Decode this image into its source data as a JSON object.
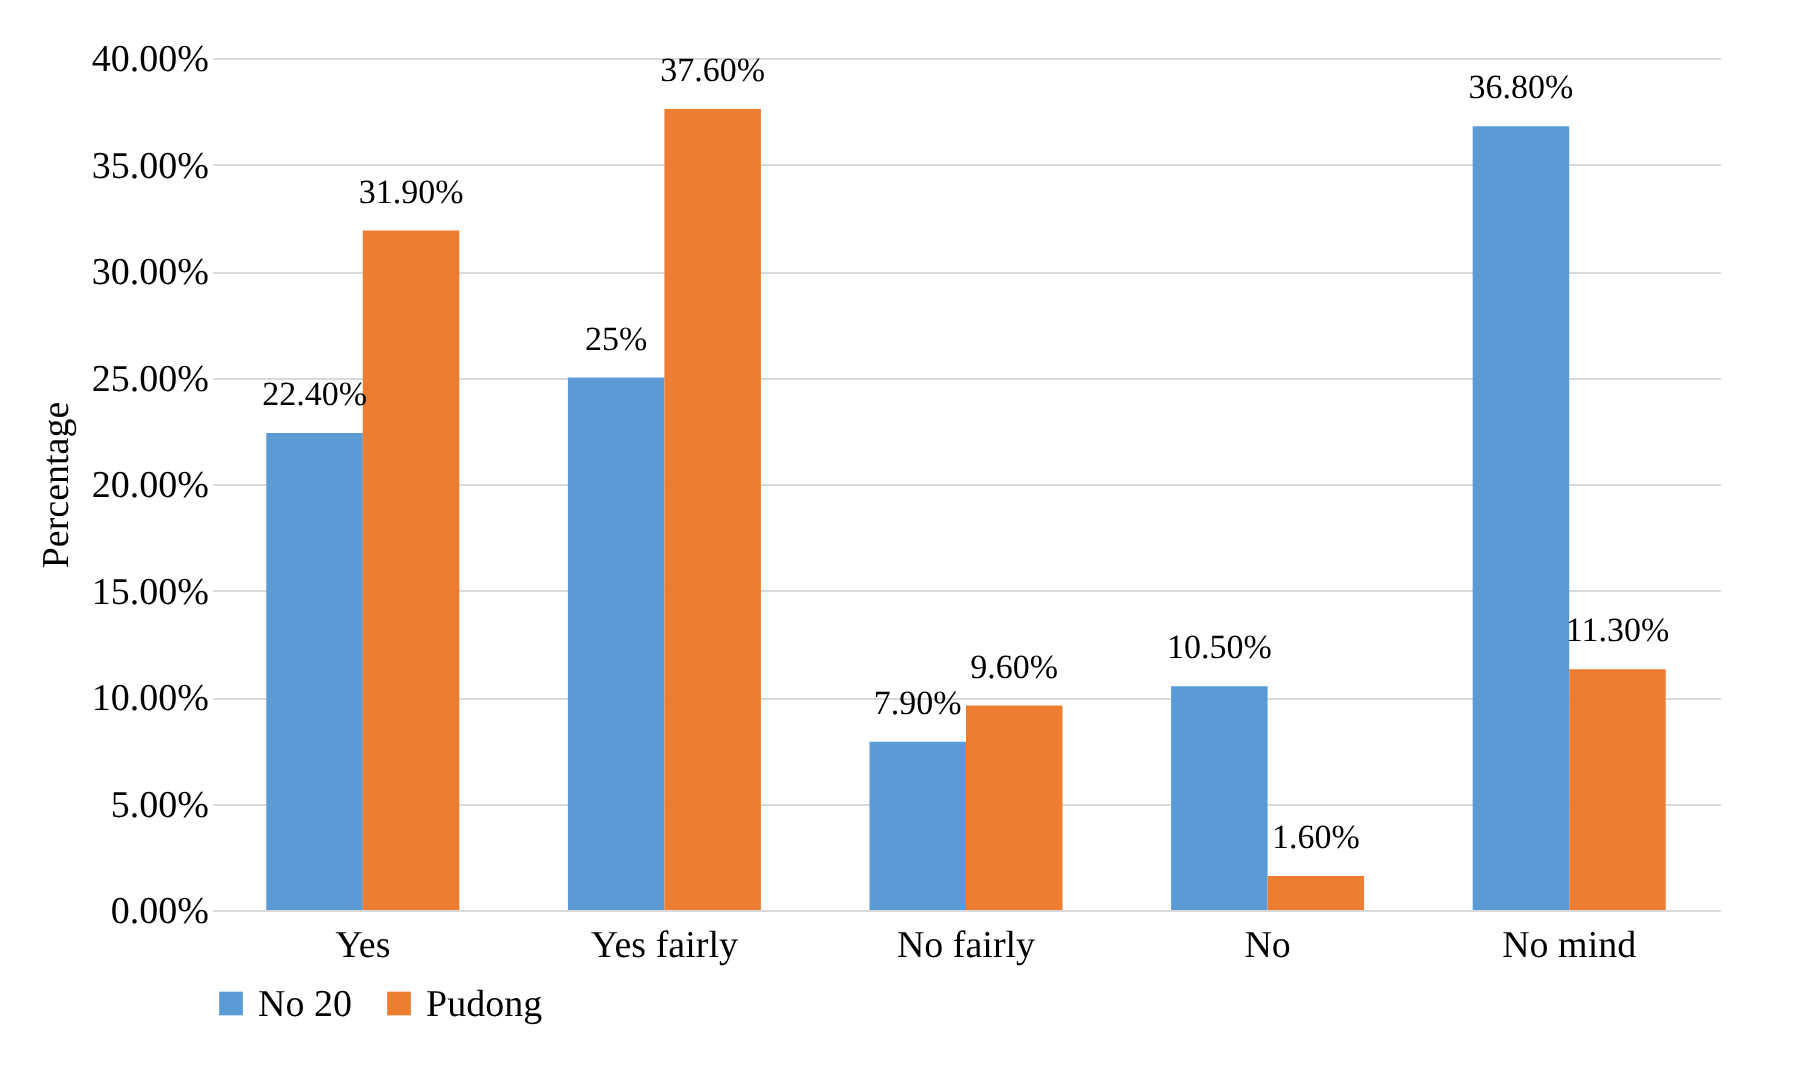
{
  "chart_data": {
    "type": "bar",
    "ylabel": "Percentage",
    "categories": [
      "Yes",
      "Yes fairly",
      "No fairly",
      "No",
      "No mind"
    ],
    "series": [
      {
        "name": "No 20",
        "color": "#5b9bd5",
        "values": [
          22.4,
          25,
          7.9,
          10.5,
          36.8
        ],
        "value_labels": [
          "22.40%",
          "25%",
          "7.90%",
          "10.50%",
          "36.80%"
        ]
      },
      {
        "name": "Pudong",
        "color": "#ed7d31",
        "values": [
          31.9,
          37.6,
          9.6,
          1.6,
          11.3
        ],
        "value_labels": [
          "31.90%",
          "37.60%",
          "9.60%",
          "1.60%",
          "11.30%"
        ]
      }
    ],
    "ylim": [
      0,
      40
    ],
    "yticks": [
      {
        "value": 0,
        "label": "0.00%"
      },
      {
        "value": 5,
        "label": "5.00%"
      },
      {
        "value": 10,
        "label": "10.00%"
      },
      {
        "value": 15,
        "label": "15.00%"
      },
      {
        "value": 20,
        "label": "20.00%"
      },
      {
        "value": 25,
        "label": "25.00%"
      },
      {
        "value": 30,
        "label": "30.00%"
      },
      {
        "value": 35,
        "label": "35.00%"
      },
      {
        "value": 40,
        "label": "40.00%"
      }
    ],
    "grid": "y",
    "legend": "bottom"
  }
}
